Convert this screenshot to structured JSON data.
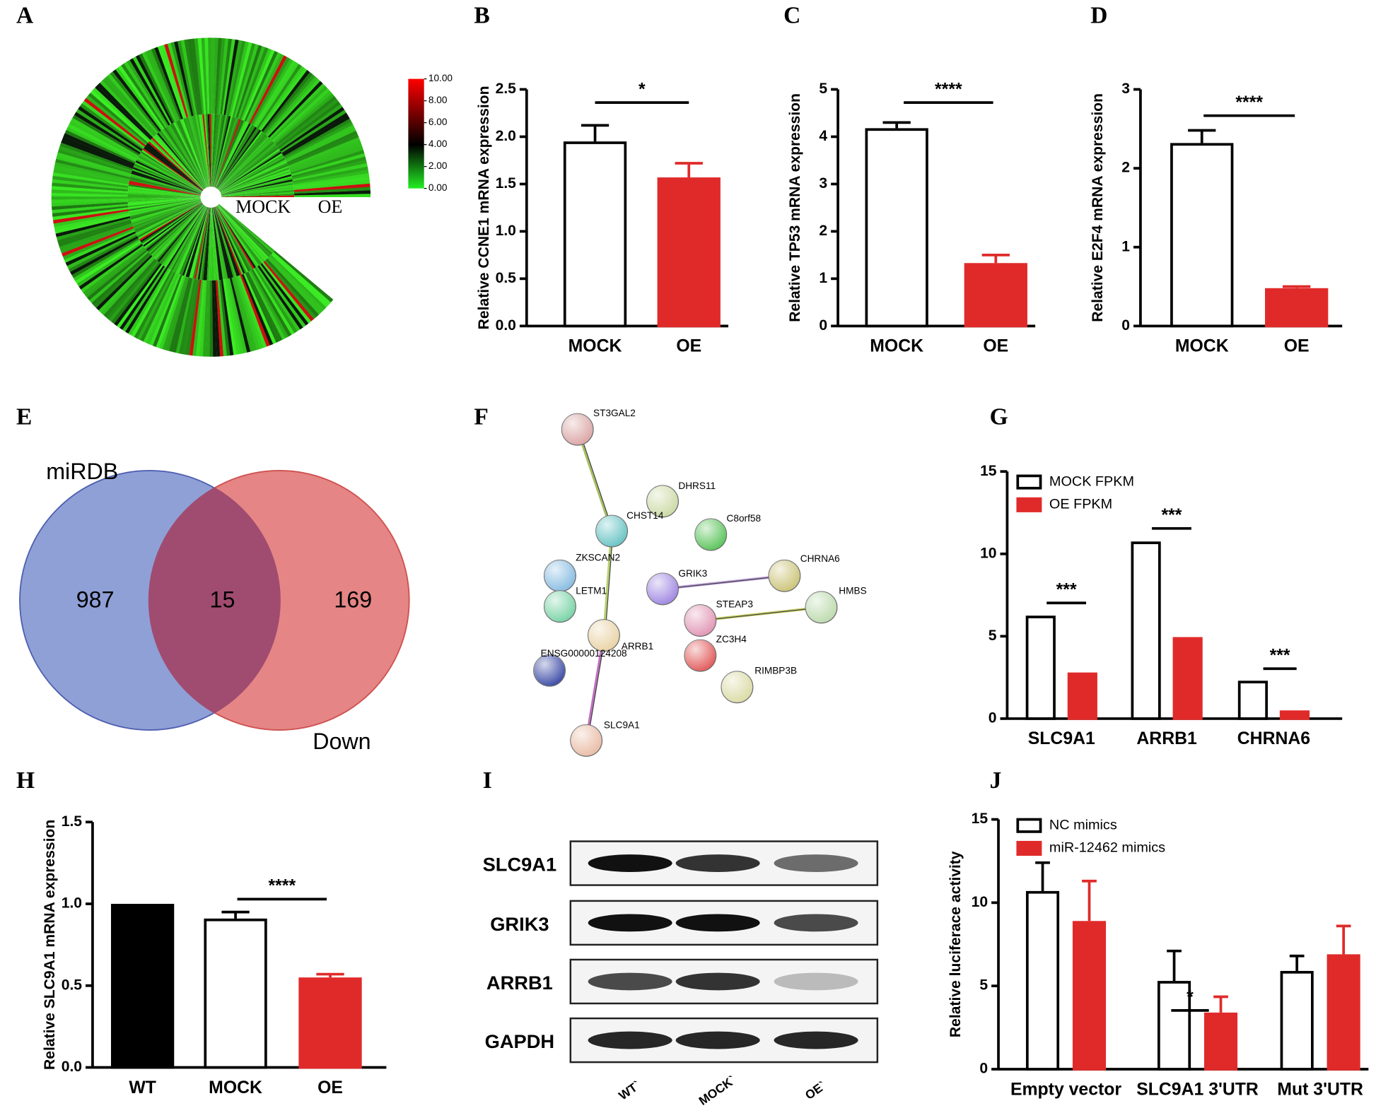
{
  "panel_labels": [
    "A",
    "B",
    "C",
    "D",
    "E",
    "F",
    "G",
    "H",
    "I",
    "J"
  ],
  "heatmap": {
    "clim": [
      0,
      10
    ],
    "colorbar_ticks": [
      {
        "value": 10,
        "label": "10.00"
      },
      {
        "value": 8,
        "label": "8.00"
      },
      {
        "value": 6,
        "label": "6.00"
      },
      {
        "value": 4,
        "label": "4.00"
      },
      {
        "value": 2,
        "label": "2.00"
      },
      {
        "value": 0,
        "label": "0.00"
      }
    ],
    "labels": [
      "MOCK",
      "OE"
    ]
  },
  "venn": {
    "sets": [
      {
        "name": "miRDB",
        "count": 987,
        "color": "#7b8fd0"
      },
      {
        "name": "Down",
        "count": 169,
        "color": "#e07070"
      }
    ],
    "intersection": 15
  },
  "network": {
    "nodes": [
      "ST3GAL2",
      "DHRS11",
      "CHST14",
      "C8orf58",
      "ZKSCAN2",
      "GRIK3",
      "CHRNA6",
      "LETM1",
      "HMBS",
      "STEAP3",
      "ARRB1",
      "ZC3H4",
      "ENSG00000124208",
      "RIMBP3B",
      "SLC9A1"
    ]
  },
  "blot": {
    "rows": [
      "SLC9A1",
      "GRIK3",
      "ARRB1",
      "GAPDH"
    ],
    "lanes": [
      "WT`",
      "MOCK`",
      "OE`"
    ]
  },
  "chart_data": [
    {
      "type": "bar",
      "ylabel": "Relative CCNE1 mRNA expression",
      "categories": [
        "MOCK",
        "OE"
      ],
      "values": [
        1.95,
        1.57
      ],
      "errors": [
        0.17,
        0.15
      ],
      "colors": [
        "#ffffff",
        "#e02a2a"
      ],
      "edgecolor": "#000000",
      "ylim": [
        0,
        2.5
      ],
      "yticks": [
        {
          "value": 0,
          "label": "0.0"
        },
        0.5,
        {
          "value": 1,
          "label": "1.0"
        },
        1.5,
        {
          "value": 2,
          "label": "2.0"
        },
        2.5
      ],
      "annotations": [
        "*"
      ]
    },
    {
      "type": "bar",
      "ylabel": "Relative TP53 mRNA expression",
      "categories": [
        "MOCK",
        "OE"
      ],
      "values": [
        4.18,
        1.33
      ],
      "errors": [
        0.12,
        0.17
      ],
      "colors": [
        "#ffffff",
        "#e02a2a"
      ],
      "edgecolor": "#000000",
      "ylim": [
        0,
        5
      ],
      "yticks": [
        0,
        1,
        2,
        3,
        4,
        5
      ],
      "annotations": [
        "****"
      ]
    },
    {
      "type": "bar",
      "ylabel": "Relative E2F4 mRNA expression",
      "categories": [
        "MOCK",
        "OE"
      ],
      "values": [
        2.32,
        0.48
      ],
      "errors": [
        0.16,
        0.02
      ],
      "colors": [
        "#ffffff",
        "#e02a2a"
      ],
      "edgecolor": "#000000",
      "ylim": [
        0,
        3
      ],
      "yticks": [
        0,
        1,
        2,
        3
      ],
      "annotations": [
        "****"
      ]
    },
    {
      "type": "grouped_bar",
      "categories": [
        "SLC9A1",
        "ARRB1",
        "CHRNA6"
      ],
      "edgecolor": "#000000",
      "legend": "upper left",
      "series": [
        {
          "name": "MOCK FPKM",
          "color": "#ffffff",
          "values": [
            6.25,
            10.75,
            2.3
          ]
        },
        {
          "name": "OE FPKM",
          "color": "#e02a2a",
          "values": [
            2.8,
            4.95,
            0.5
          ]
        }
      ],
      "ylim": [
        0,
        15
      ],
      "yticks": [
        0,
        5,
        10,
        15
      ],
      "annotations": [
        "***",
        "***",
        "***"
      ]
    },
    {
      "type": "bar",
      "ylabel": "Relative SLC9A1 mRNA expression",
      "categories": [
        "WT",
        "MOCK",
        "OE"
      ],
      "values": [
        1.0,
        0.91,
        0.55
      ],
      "errors": [
        0,
        0.04,
        0.02
      ],
      "colors": [
        "#000000",
        "#ffffff",
        "#e02a2a"
      ],
      "edgecolor": "#000000",
      "ylim": [
        0,
        1.5
      ],
      "yticks": [
        {
          "value": 0,
          "label": "0.0"
        },
        0.5,
        {
          "value": 1,
          "label": "1.0"
        },
        1.5
      ],
      "annotations": [
        "****"
      ]
    },
    {
      "type": "grouped_bar",
      "ylabel": "Relative luciferace activity",
      "categories": [
        "Empty vector",
        "SLC9A1 3'UTR",
        "Mut 3'UTR"
      ],
      "edgecolor": "#000000",
      "legend": "upper left",
      "series": [
        {
          "name": "NC mimics",
          "color": "#ffffff",
          "values": [
            10.7,
            5.3,
            5.9
          ],
          "errors": [
            1.7,
            1.8,
            0.9
          ]
        },
        {
          "name": "miR-12462 mimics",
          "color": "#e02a2a",
          "values": [
            8.9,
            3.4,
            6.9
          ],
          "errors": [
            2.4,
            0.95,
            1.7
          ]
        }
      ],
      "ylim": [
        0,
        15
      ],
      "yticks": [
        0,
        5,
        10,
        15
      ],
      "annotations": [
        "*"
      ]
    }
  ]
}
